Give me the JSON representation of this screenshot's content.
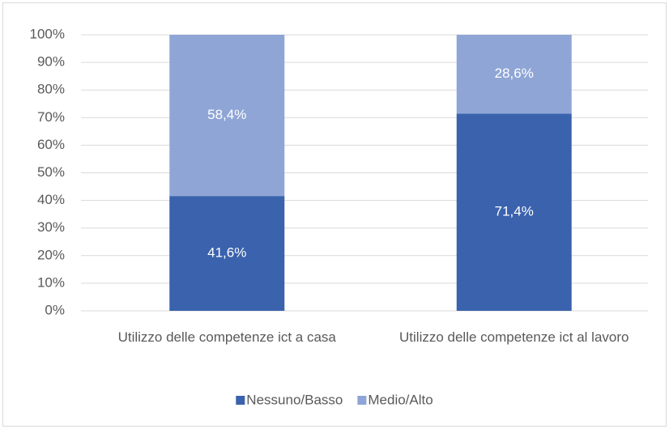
{
  "chart_data": {
    "type": "stacked_bar",
    "categories": [
      "Utilizzo delle competenze ict a casa",
      "Utilizzo delle competenze ict al lavoro"
    ],
    "series": [
      {
        "name": "Nessuno/Basso",
        "color": "#3a62ad",
        "values": [
          41.6,
          71.4
        ],
        "value_labels": [
          "41,6%",
          "71,4%"
        ]
      },
      {
        "name": "Medio/Alto",
        "color": "#8fa5d6",
        "values": [
          58.4,
          28.6
        ],
        "value_labels": [
          "58,4%",
          "28,6%"
        ]
      }
    ],
    "ylim": [
      0,
      100
    ],
    "yticks": [
      {
        "value": 0,
        "label": "0%"
      },
      {
        "value": 10,
        "label": "10%"
      },
      {
        "value": 20,
        "label": "20%"
      },
      {
        "value": 30,
        "label": "30%"
      },
      {
        "value": 40,
        "label": "40%"
      },
      {
        "value": 50,
        "label": "50%"
      },
      {
        "value": 60,
        "label": "60%"
      },
      {
        "value": 70,
        "label": "70%"
      },
      {
        "value": 80,
        "label": "80%"
      },
      {
        "value": 90,
        "label": "90%"
      },
      {
        "value": 100,
        "label": "100%"
      }
    ],
    "grid": true,
    "legend": "bottom"
  }
}
